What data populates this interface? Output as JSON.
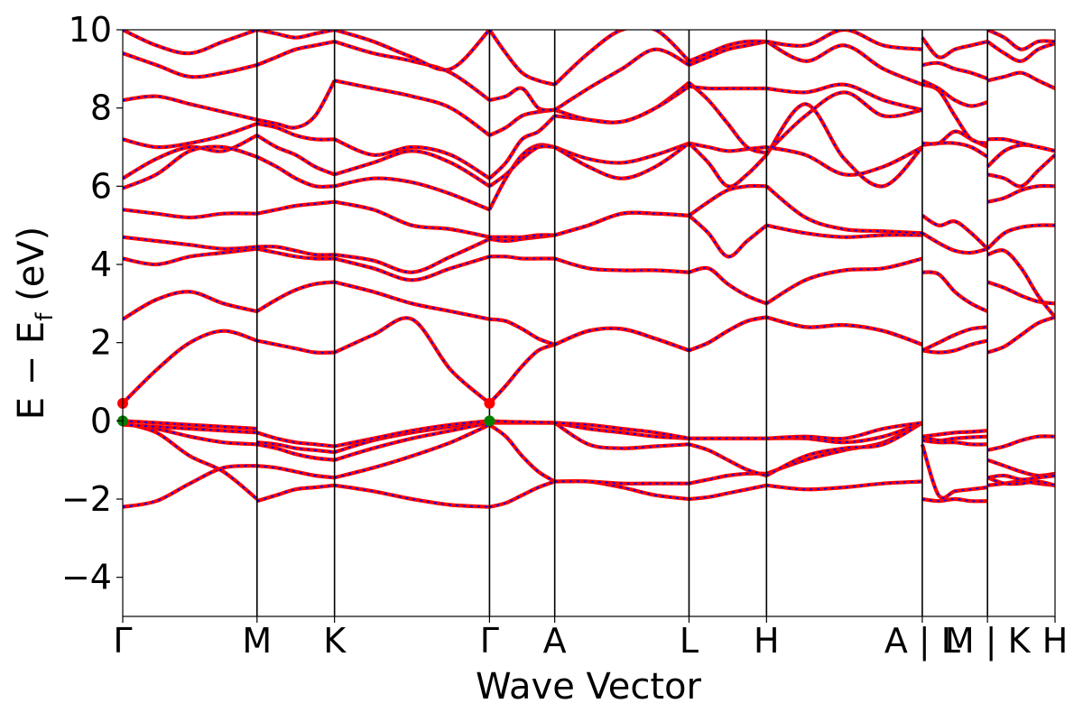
{
  "chart_data": {
    "type": "line",
    "title": "",
    "xlabel": "Wave Vector",
    "ylabel_main": "E − E",
    "ylabel_sub": "f",
    "ylabel_unit": " (eV)",
    "ylim": [
      -5,
      10
    ],
    "yticks": [
      -4,
      -2,
      0,
      2,
      4,
      6,
      8,
      10
    ],
    "ytick_labels": [
      "−4",
      "−2",
      "0",
      "2",
      "4",
      "6",
      "8",
      "10"
    ],
    "xlim": [
      0,
      12.15
    ],
    "kpoints": [
      {
        "x": 0.0,
        "label": "Γ"
      },
      {
        "x": 1.75,
        "label": "M"
      },
      {
        "x": 2.76,
        "label": "K"
      },
      {
        "x": 4.78,
        "label": "Γ"
      },
      {
        "x": 5.63,
        "label": "A"
      },
      {
        "x": 7.38,
        "label": "L"
      },
      {
        "x": 8.39,
        "label": "H"
      },
      {
        "x": 10.42,
        "label": "A | L"
      },
      {
        "x": 11.27,
        "label": "M | K"
      },
      {
        "x": 12.15,
        "label": "H"
      }
    ],
    "series_colors": {
      "up": "#ff0000",
      "down": "#0000ff"
    },
    "special_points": [
      {
        "x": 0.0,
        "y": 0.45,
        "color": "#ff0000"
      },
      {
        "x": 4.78,
        "y": 0.45,
        "color": "#ff0000"
      },
      {
        "x": 0.0,
        "y": 0.0,
        "color": "#008000"
      },
      {
        "x": 4.78,
        "y": 0.0,
        "color": "#008000"
      }
    ],
    "segments": [
      {
        "x0": 0.0,
        "x1": 1.75,
        "bands": [
          [
            -2.2,
            -2.05,
            -1.6,
            -1.2,
            -1.15
          ],
          [
            -0.05,
            -0.3,
            -0.9,
            -1.3,
            -2.0
          ],
          [
            -0.08,
            -0.2,
            -0.4,
            -0.55,
            -0.6
          ],
          [
            -0.1,
            -0.15,
            -0.2,
            -0.25,
            -0.3
          ],
          [
            0.0,
            -0.05,
            -0.1,
            -0.15,
            -0.2
          ],
          [
            0.45,
            1.3,
            2.0,
            2.3,
            2.05
          ],
          [
            2.6,
            3.1,
            3.3,
            3.0,
            2.8
          ],
          [
            4.15,
            4.0,
            4.2,
            4.3,
            4.4
          ],
          [
            4.7,
            4.6,
            4.5,
            4.4,
            4.45
          ],
          [
            5.4,
            5.3,
            5.2,
            5.3,
            5.3
          ],
          [
            5.95,
            6.3,
            6.9,
            7.0,
            6.75
          ],
          [
            6.2,
            6.7,
            7.0,
            6.9,
            7.3
          ],
          [
            7.2,
            7.0,
            7.1,
            7.3,
            7.6
          ],
          [
            8.2,
            8.3,
            8.1,
            7.9,
            7.7
          ],
          [
            9.4,
            9.1,
            8.8,
            8.9,
            9.1
          ],
          [
            10.0,
            9.6,
            9.4,
            9.7,
            10.0
          ]
        ]
      },
      {
        "x0": 1.75,
        "x1": 2.76,
        "bands": [
          [
            -2.05,
            -1.9,
            -1.75,
            -1.7,
            -1.65
          ],
          [
            -1.15,
            -1.2,
            -1.3,
            -1.4,
            -1.45
          ],
          [
            -0.6,
            -0.7,
            -0.85,
            -0.95,
            -1.0
          ],
          [
            -0.55,
            -0.6,
            -0.7,
            -0.75,
            -0.8
          ],
          [
            -0.3,
            -0.45,
            -0.55,
            -0.6,
            -0.65
          ],
          [
            2.05,
            1.95,
            1.85,
            1.75,
            1.75
          ],
          [
            2.8,
            3.1,
            3.35,
            3.5,
            3.55
          ],
          [
            4.4,
            4.3,
            4.2,
            4.15,
            4.15
          ],
          [
            4.45,
            4.45,
            4.35,
            4.25,
            4.25
          ],
          [
            5.3,
            5.4,
            5.5,
            5.55,
            5.6
          ],
          [
            6.75,
            6.5,
            6.2,
            6.0,
            6.0
          ],
          [
            7.3,
            7.0,
            6.8,
            6.5,
            6.3
          ],
          [
            7.6,
            7.5,
            7.3,
            7.2,
            7.2
          ],
          [
            7.7,
            7.6,
            7.5,
            7.8,
            8.7
          ],
          [
            9.1,
            9.3,
            9.5,
            9.6,
            9.7
          ],
          [
            10.0,
            9.9,
            9.8,
            9.9,
            10.0
          ]
        ]
      },
      {
        "x0": 2.76,
        "x1": 4.78,
        "bands": [
          [
            -1.65,
            -1.8,
            -2.0,
            -2.15,
            -2.2
          ],
          [
            -1.45,
            -1.2,
            -0.9,
            -0.55,
            -0.1
          ],
          [
            -1.0,
            -0.7,
            -0.45,
            -0.25,
            -0.05
          ],
          [
            -0.8,
            -0.5,
            -0.3,
            -0.15,
            -0.02
          ],
          [
            -0.65,
            -0.45,
            -0.25,
            -0.1,
            0.0
          ],
          [
            1.75,
            2.2,
            2.6,
            1.3,
            0.45
          ],
          [
            3.55,
            3.3,
            3.0,
            2.8,
            2.6
          ],
          [
            4.15,
            3.9,
            3.6,
            3.9,
            4.2
          ],
          [
            4.25,
            4.1,
            3.8,
            4.2,
            4.65
          ],
          [
            5.6,
            5.4,
            5.0,
            4.9,
            4.7
          ],
          [
            6.0,
            6.2,
            6.1,
            5.8,
            5.4
          ],
          [
            6.3,
            6.6,
            6.9,
            6.6,
            6.0
          ],
          [
            7.2,
            6.8,
            7.0,
            6.8,
            6.2
          ],
          [
            8.7,
            8.5,
            8.3,
            8.0,
            7.3
          ],
          [
            9.7,
            9.4,
            9.2,
            8.9,
            8.2
          ],
          [
            10.0,
            9.7,
            9.3,
            9.0,
            10.0
          ]
        ]
      },
      {
        "x0": 4.78,
        "x1": 5.63,
        "bands": [
          [
            -2.2,
            -2.1,
            -1.9,
            -1.7,
            -1.55
          ],
          [
            -0.1,
            -0.4,
            -0.9,
            -1.3,
            -1.55
          ],
          [
            -0.05,
            -0.05,
            -0.05,
            -0.05,
            -0.05
          ],
          [
            -0.02,
            -0.03,
            -0.04,
            -0.05,
            -0.05
          ],
          [
            0.0,
            -0.02,
            -0.03,
            -0.04,
            -0.05
          ],
          [
            0.45,
            0.9,
            1.4,
            1.8,
            1.95
          ],
          [
            2.6,
            2.55,
            2.35,
            2.1,
            1.95
          ],
          [
            4.2,
            4.2,
            4.15,
            4.15,
            4.15
          ],
          [
            4.65,
            4.6,
            4.65,
            4.7,
            4.75
          ],
          [
            4.7,
            4.7,
            4.7,
            4.75,
            4.75
          ],
          [
            5.4,
            6.2,
            6.8,
            7.05,
            7.0
          ],
          [
            6.0,
            6.3,
            6.7,
            7.0,
            7.0
          ],
          [
            6.2,
            6.6,
            7.2,
            7.4,
            7.8
          ],
          [
            7.3,
            7.5,
            7.8,
            7.9,
            7.95
          ],
          [
            8.2,
            8.3,
            8.5,
            8.0,
            7.95
          ],
          [
            10.0,
            9.4,
            8.9,
            8.7,
            8.6
          ]
        ]
      },
      {
        "x0": 5.63,
        "x1": 7.38,
        "bands": [
          [
            -1.55,
            -1.55,
            -1.7,
            -1.9,
            -2.0
          ],
          [
            -1.55,
            -1.55,
            -1.6,
            -1.6,
            -1.6
          ],
          [
            -0.05,
            -0.6,
            -0.7,
            -0.65,
            -0.6
          ],
          [
            -0.05,
            -0.2,
            -0.3,
            -0.4,
            -0.45
          ],
          [
            -0.05,
            -0.1,
            -0.2,
            -0.3,
            -0.45
          ],
          [
            1.95,
            2.3,
            2.35,
            2.1,
            1.8
          ],
          [
            1.95,
            2.3,
            2.35,
            2.1,
            1.8
          ],
          [
            4.15,
            3.9,
            3.85,
            3.85,
            3.8
          ],
          [
            4.75,
            5.0,
            5.3,
            5.3,
            5.25
          ],
          [
            4.75,
            5.0,
            5.3,
            5.3,
            5.25
          ],
          [
            7.0,
            6.7,
            6.6,
            6.8,
            7.1
          ],
          [
            7.0,
            6.5,
            6.2,
            6.5,
            7.1
          ],
          [
            7.8,
            7.7,
            7.65,
            8.0,
            8.65
          ],
          [
            7.95,
            7.7,
            7.65,
            8.0,
            8.55
          ],
          [
            7.95,
            8.5,
            9.0,
            9.5,
            9.1
          ],
          [
            8.6,
            9.4,
            10.0,
            10.0,
            9.2
          ]
        ]
      },
      {
        "x0": 7.38,
        "x1": 8.39,
        "bands": [
          [
            -2.0,
            -1.95,
            -1.85,
            -1.75,
            -1.65
          ],
          [
            -1.6,
            -1.5,
            -1.4,
            -1.35,
            -1.35
          ],
          [
            -0.6,
            -0.75,
            -1.0,
            -1.25,
            -1.4
          ],
          [
            -0.45,
            -0.45,
            -0.45,
            -0.45,
            -0.45
          ],
          [
            -0.45,
            -0.45,
            -0.45,
            -0.45,
            -0.45
          ],
          [
            1.8,
            2.0,
            2.3,
            2.55,
            2.65
          ],
          [
            1.8,
            2.0,
            2.3,
            2.55,
            2.65
          ],
          [
            3.8,
            3.9,
            3.5,
            3.2,
            3.0
          ],
          [
            5.25,
            4.8,
            4.2,
            4.6,
            5.0
          ],
          [
            5.25,
            5.6,
            5.9,
            6.0,
            6.0
          ],
          [
            7.1,
            7.0,
            6.9,
            6.95,
            7.0
          ],
          [
            7.1,
            6.6,
            6.0,
            6.3,
            6.8
          ],
          [
            8.65,
            8.2,
            7.6,
            7.0,
            6.85
          ],
          [
            8.55,
            8.5,
            8.5,
            8.5,
            8.5
          ],
          [
            9.1,
            9.3,
            9.5,
            9.6,
            9.7
          ],
          [
            9.2,
            9.4,
            9.6,
            9.7,
            9.7
          ]
        ]
      },
      {
        "x0": 8.39,
        "x1": 10.42,
        "bands": [
          [
            -1.65,
            -1.75,
            -1.7,
            -1.6,
            -1.55
          ],
          [
            -1.35,
            -1.0,
            -0.75,
            -0.55,
            -0.05
          ],
          [
            -1.4,
            -0.9,
            -0.7,
            -0.6,
            -0.05
          ],
          [
            -0.45,
            -0.45,
            -0.55,
            -0.4,
            -0.05
          ],
          [
            -0.45,
            -0.4,
            -0.45,
            -0.2,
            -0.05
          ],
          [
            2.65,
            2.4,
            2.45,
            2.3,
            1.95
          ],
          [
            2.65,
            2.4,
            2.45,
            2.3,
            1.95
          ],
          [
            3.0,
            3.6,
            3.85,
            3.9,
            4.15
          ],
          [
            5.0,
            4.8,
            4.7,
            4.75,
            4.75
          ],
          [
            6.0,
            5.2,
            4.9,
            4.85,
            4.8
          ],
          [
            7.0,
            6.8,
            6.3,
            6.5,
            7.0
          ],
          [
            6.8,
            8.1,
            6.7,
            6.0,
            7.0
          ],
          [
            6.85,
            7.8,
            8.4,
            7.8,
            7.95
          ],
          [
            8.5,
            8.4,
            8.6,
            8.2,
            7.95
          ],
          [
            9.7,
            9.2,
            9.6,
            9.0,
            8.6
          ],
          [
            9.7,
            9.6,
            10.0,
            9.6,
            9.5
          ]
        ]
      },
      {
        "x0": 10.42,
        "x1": 11.27,
        "bands": [
          [
            -2.0,
            -2.05,
            -2.0,
            -2.05,
            -2.05
          ],
          [
            -0.6,
            -1.9,
            -1.8,
            -1.75,
            -1.7
          ],
          [
            -0.5,
            -0.55,
            -0.55,
            -0.6,
            -0.6
          ],
          [
            -0.4,
            -0.35,
            -0.3,
            -0.28,
            -0.25
          ],
          [
            -0.4,
            -0.5,
            -0.45,
            -0.42,
            -0.4
          ],
          [
            1.8,
            1.75,
            1.8,
            1.95,
            2.05
          ],
          [
            1.8,
            2.0,
            2.2,
            2.35,
            2.4
          ],
          [
            3.8,
            3.75,
            3.3,
            3.0,
            2.8
          ],
          [
            4.8,
            4.55,
            4.35,
            4.3,
            4.4
          ],
          [
            5.25,
            5.0,
            5.1,
            4.8,
            4.4
          ],
          [
            7.05,
            7.1,
            7.1,
            7.0,
            6.75
          ],
          [
            7.1,
            7.1,
            7.4,
            7.2,
            7.0
          ],
          [
            8.6,
            8.45,
            7.8,
            7.2,
            7.1
          ],
          [
            8.7,
            8.5,
            8.2,
            8.05,
            8.15
          ],
          [
            9.1,
            9.15,
            9.0,
            8.9,
            8.75
          ],
          [
            9.8,
            9.3,
            9.5,
            9.6,
            9.7
          ]
        ]
      },
      {
        "x0": 11.27,
        "x1": 12.15,
        "bands": [
          [
            -1.65,
            -1.6,
            -1.55,
            -1.6,
            -1.65
          ],
          [
            -1.45,
            -1.6,
            -1.6,
            -1.55,
            -1.65
          ],
          [
            -1.0,
            -1.15,
            -1.3,
            -1.4,
            -1.35
          ],
          [
            -0.75,
            -0.65,
            -0.5,
            -0.4,
            -0.4
          ],
          [
            -1.45,
            -1.4,
            -1.5,
            -1.45,
            -1.4
          ],
          [
            1.75,
            1.9,
            2.2,
            2.5,
            2.65
          ],
          [
            3.55,
            3.4,
            3.2,
            3.05,
            3.0
          ],
          [
            4.25,
            4.35,
            3.9,
            3.2,
            2.65
          ],
          [
            4.4,
            4.8,
            4.95,
            5.0,
            5.0
          ],
          [
            5.6,
            5.7,
            5.9,
            6.0,
            6.0
          ],
          [
            6.3,
            6.2,
            6.0,
            6.4,
            6.8
          ],
          [
            6.5,
            6.9,
            7.05,
            7.0,
            6.9
          ],
          [
            7.2,
            7.2,
            7.1,
            7.0,
            6.9
          ],
          [
            8.7,
            8.8,
            8.9,
            8.7,
            8.5
          ],
          [
            9.7,
            9.4,
            9.2,
            9.5,
            9.65
          ],
          [
            10.0,
            9.8,
            9.5,
            9.7,
            9.7
          ]
        ]
      }
    ]
  }
}
